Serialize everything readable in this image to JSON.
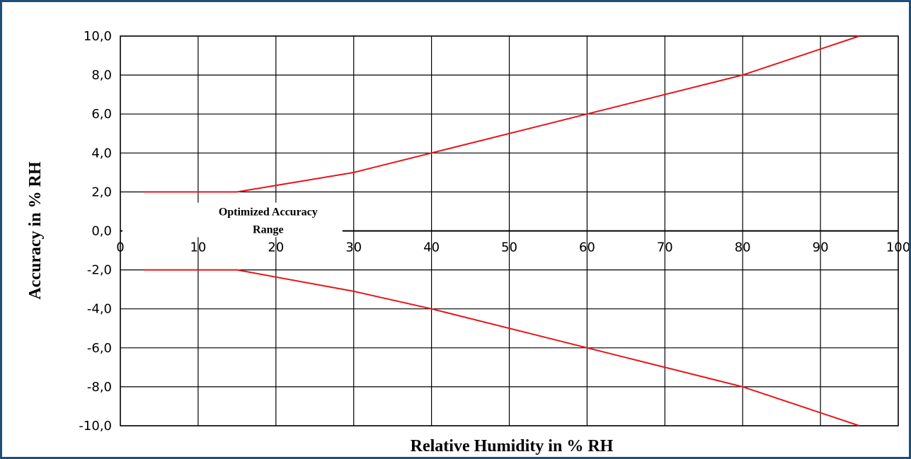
{
  "chart_data": {
    "type": "line",
    "xlabel": "Relative Humidity in % RH",
    "ylabel": "Accuracy in % RH",
    "xlim": [
      0,
      100
    ],
    "ylim": [
      -10,
      10
    ],
    "x_ticks": [
      0,
      10,
      20,
      30,
      40,
      50,
      60,
      70,
      80,
      90,
      100
    ],
    "y_ticks": [
      10,
      8,
      6,
      4,
      2,
      0,
      -2,
      -4,
      -6,
      -8,
      -10
    ],
    "y_tick_labels": [
      "10,0",
      "8,0",
      "6,0",
      "4,0",
      "2,0",
      "0,0",
      "-2,0",
      "-4,0",
      "-6,0",
      "-8,0",
      "-10,0"
    ],
    "grid": true,
    "line_color": "#e8141b",
    "series": [
      {
        "x": [
          3,
          15,
          30,
          40,
          60,
          80,
          95
        ],
        "y": [
          2,
          2,
          3,
          4,
          6,
          8,
          10
        ]
      },
      {
        "x": [
          3,
          15,
          30,
          40,
          60,
          80,
          95
        ],
        "y": [
          -2,
          -2,
          -3.1,
          -4,
          -6,
          -8,
          -10
        ]
      }
    ],
    "annotations": [
      {
        "text": "Optimized Accuracy",
        "x": 19,
        "y": 0.8
      },
      {
        "text": "Range",
        "x": 19,
        "y": -0.1
      }
    ]
  }
}
